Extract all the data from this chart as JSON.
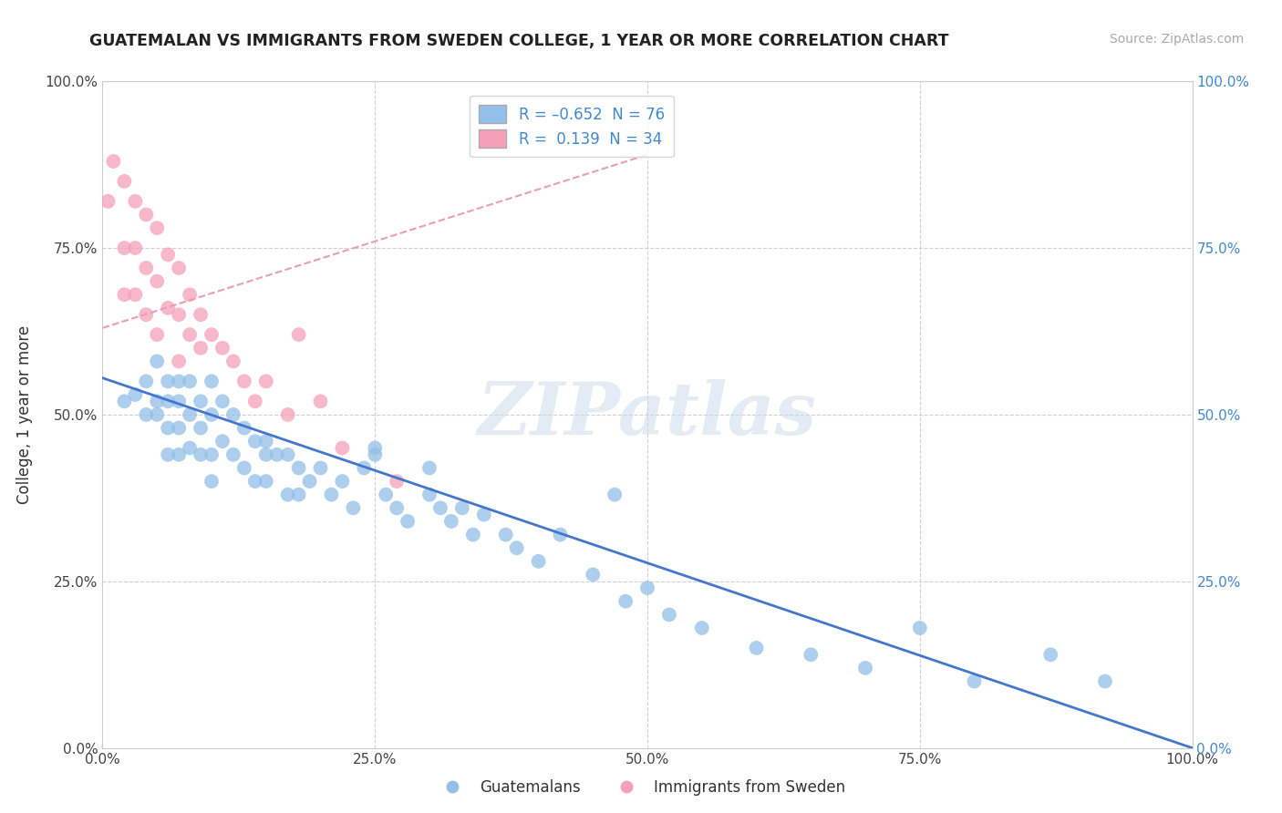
{
  "title": "GUATEMALAN VS IMMIGRANTS FROM SWEDEN COLLEGE, 1 YEAR OR MORE CORRELATION CHART",
  "source": "Source: ZipAtlas.com",
  "ylabel": "College, 1 year or more",
  "xlim": [
    0.0,
    1.0
  ],
  "ylim": [
    0.0,
    1.0
  ],
  "xtick_labels": [
    "0.0%",
    "25.0%",
    "50.0%",
    "75.0%",
    "100.0%"
  ],
  "xtick_vals": [
    0.0,
    0.25,
    0.5,
    0.75,
    1.0
  ],
  "ytick_labels": [
    "0.0%",
    "25.0%",
    "50.0%",
    "75.0%",
    "100.0%"
  ],
  "ytick_vals": [
    0.0,
    0.25,
    0.5,
    0.75,
    1.0
  ],
  "watermark_text": "ZIPatlas",
  "blue_R": -0.652,
  "blue_N": 76,
  "pink_R": 0.139,
  "pink_N": 34,
  "blue_color": "#92c0e8",
  "pink_color": "#f5a0b8",
  "blue_line_color": "#4477cc",
  "pink_line_color": "#e87090",
  "pink_dash_color": "#e8a0b0",
  "grid_color": "#d0d0d0",
  "background_color": "#ffffff",
  "title_color": "#222222",
  "source_color": "#aaaaaa",
  "right_axis_color": "#4488cc",
  "legend_text_color": "#4488cc",
  "bottom_legend_color": "#333333",
  "blue_line_intercept": 0.555,
  "blue_line_slope": -0.555,
  "pink_line_intercept": 0.63,
  "pink_line_slope": 0.52,
  "pink_line_xmax": 0.5,
  "blue_scatter_x": [
    0.02,
    0.03,
    0.04,
    0.04,
    0.05,
    0.05,
    0.05,
    0.06,
    0.06,
    0.06,
    0.06,
    0.07,
    0.07,
    0.07,
    0.07,
    0.08,
    0.08,
    0.08,
    0.09,
    0.09,
    0.09,
    0.1,
    0.1,
    0.1,
    0.1,
    0.11,
    0.11,
    0.12,
    0.12,
    0.13,
    0.13,
    0.14,
    0.14,
    0.15,
    0.15,
    0.16,
    0.17,
    0.17,
    0.18,
    0.18,
    0.19,
    0.2,
    0.21,
    0.22,
    0.23,
    0.24,
    0.25,
    0.26,
    0.27,
    0.28,
    0.3,
    0.31,
    0.32,
    0.33,
    0.34,
    0.35,
    0.37,
    0.38,
    0.4,
    0.42,
    0.45,
    0.48,
    0.5,
    0.52,
    0.55,
    0.6,
    0.65,
    0.7,
    0.75,
    0.8,
    0.87,
    0.92,
    0.47,
    0.3,
    0.25,
    0.15
  ],
  "blue_scatter_y": [
    0.52,
    0.53,
    0.55,
    0.5,
    0.58,
    0.52,
    0.5,
    0.55,
    0.52,
    0.48,
    0.44,
    0.55,
    0.52,
    0.48,
    0.44,
    0.55,
    0.5,
    0.45,
    0.52,
    0.48,
    0.44,
    0.55,
    0.5,
    0.44,
    0.4,
    0.52,
    0.46,
    0.5,
    0.44,
    0.48,
    0.42,
    0.46,
    0.4,
    0.46,
    0.4,
    0.44,
    0.44,
    0.38,
    0.42,
    0.38,
    0.4,
    0.42,
    0.38,
    0.4,
    0.36,
    0.42,
    0.45,
    0.38,
    0.36,
    0.34,
    0.38,
    0.36,
    0.34,
    0.36,
    0.32,
    0.35,
    0.32,
    0.3,
    0.28,
    0.32,
    0.26,
    0.22,
    0.24,
    0.2,
    0.18,
    0.15,
    0.14,
    0.12,
    0.18,
    0.1,
    0.14,
    0.1,
    0.38,
    0.42,
    0.44,
    0.44
  ],
  "pink_scatter_x": [
    0.005,
    0.01,
    0.02,
    0.02,
    0.02,
    0.03,
    0.03,
    0.03,
    0.04,
    0.04,
    0.04,
    0.05,
    0.05,
    0.05,
    0.06,
    0.06,
    0.07,
    0.07,
    0.07,
    0.08,
    0.08,
    0.09,
    0.09,
    0.1,
    0.11,
    0.12,
    0.13,
    0.14,
    0.15,
    0.17,
    0.18,
    0.2,
    0.22,
    0.27
  ],
  "pink_scatter_y": [
    0.82,
    0.88,
    0.85,
    0.75,
    0.68,
    0.82,
    0.75,
    0.68,
    0.8,
    0.72,
    0.65,
    0.78,
    0.7,
    0.62,
    0.74,
    0.66,
    0.72,
    0.65,
    0.58,
    0.68,
    0.62,
    0.65,
    0.6,
    0.62,
    0.6,
    0.58,
    0.55,
    0.52,
    0.55,
    0.5,
    0.62,
    0.52,
    0.45,
    0.4
  ]
}
